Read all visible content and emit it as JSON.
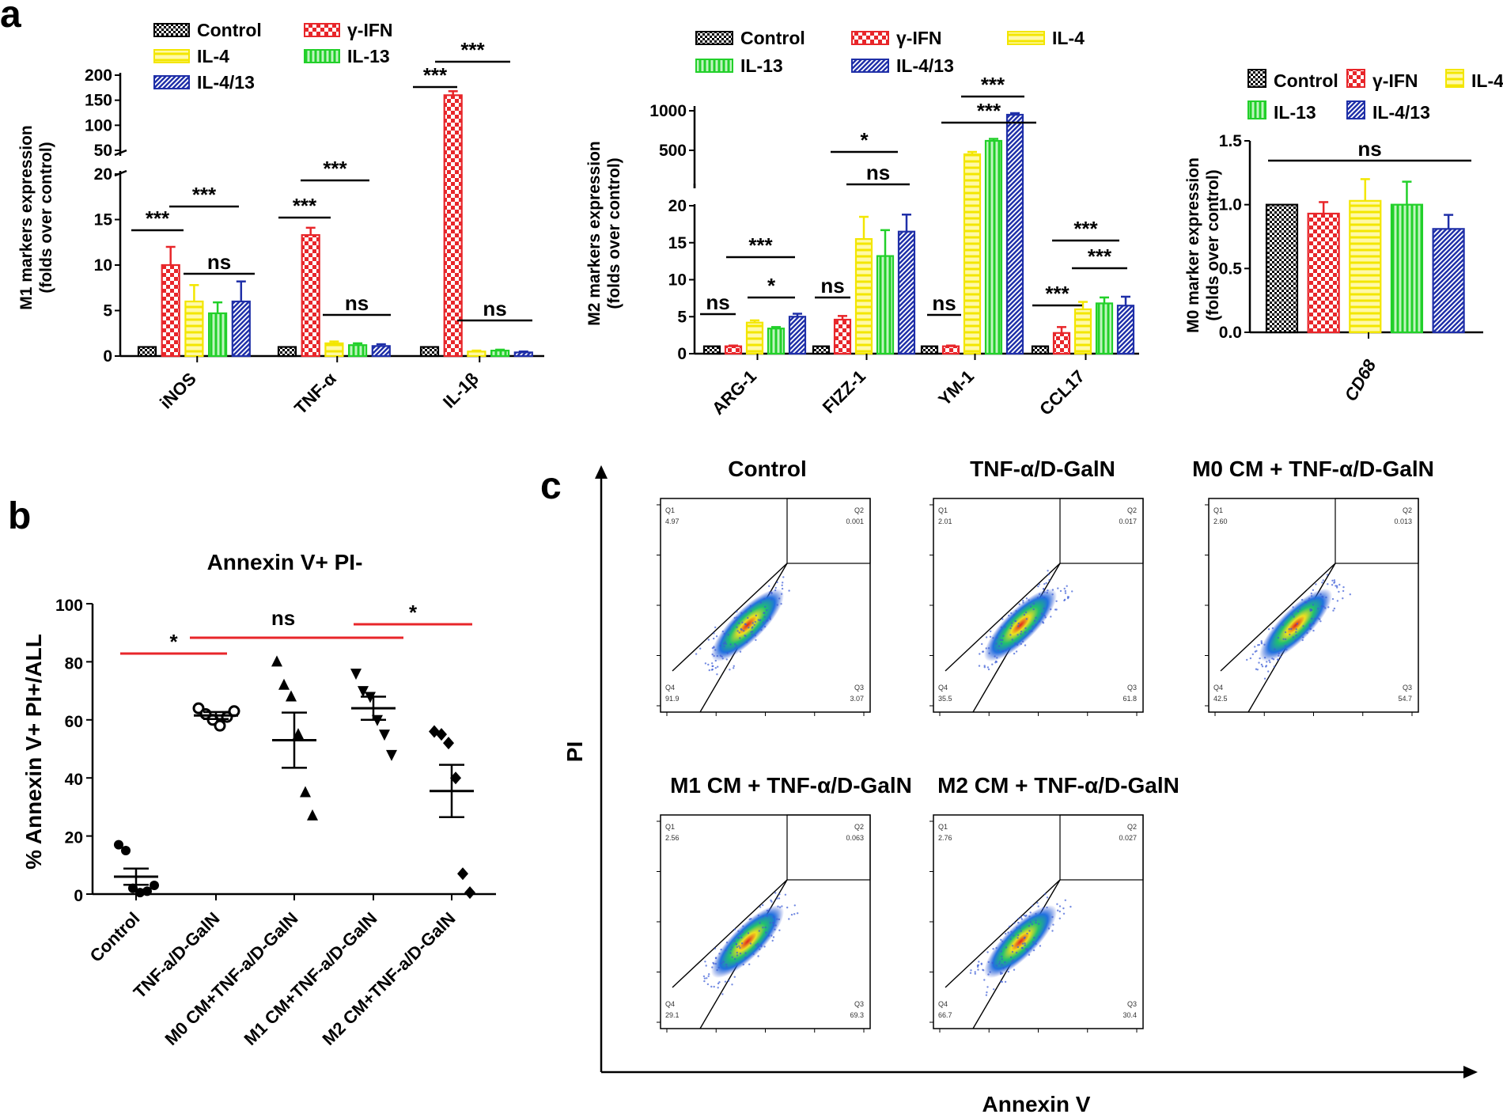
{
  "panel_labels": {
    "a": "a",
    "b": "b",
    "c": "c"
  },
  "colors": {
    "Control": "#000000",
    "γ-IFN": "#e8262a",
    "IL-4": "#f3e600",
    "IL-13": "#22d02a",
    "IL-4/13": "#1f2fa8",
    "sig_red": "#e8262a"
  },
  "chart_data": [
    {
      "id": "a1",
      "type": "bar",
      "ylabel": "M1 markers expression\n(folds over control)",
      "legend": [
        "Control",
        "γ-IFN",
        "IL-4",
        "IL-13",
        "IL-4/13"
      ],
      "categories": [
        "iNOS",
        "TNF-α",
        "IL-1β"
      ],
      "ytick_labels": [
        "0",
        "5",
        "10",
        "15",
        "20",
        "50",
        "100",
        "150",
        "200"
      ],
      "y_breaks": [
        [
          0,
          20
        ],
        [
          20,
          200
        ]
      ],
      "series": [
        {
          "name": "Control",
          "values": [
            1,
            1,
            1
          ],
          "err": [
            0,
            0,
            0
          ]
        },
        {
          "name": "γ-IFN",
          "values": [
            10,
            13.3,
            160
          ],
          "err": [
            2,
            0.8,
            8
          ]
        },
        {
          "name": "IL-4",
          "values": [
            6,
            1.4,
            0.5
          ],
          "err": [
            1.8,
            0.2,
            0.1
          ]
        },
        {
          "name": "IL-13",
          "values": [
            4.7,
            1.2,
            0.6
          ],
          "err": [
            1.2,
            0.2,
            0.1
          ]
        },
        {
          "name": "IL-4/13",
          "values": [
            6,
            1.1,
            0.4
          ],
          "err": [
            2.2,
            0.2,
            0.1
          ]
        }
      ],
      "annotations": [
        "***",
        "***",
        "ns",
        "***",
        "***",
        "ns",
        "***",
        "***",
        "ns"
      ]
    },
    {
      "id": "a2",
      "type": "bar",
      "ylabel": "M2 markers expression\n(folds over control)",
      "legend": [
        "Control",
        "γ-IFN",
        "IL-4",
        "IL-13",
        "IL-4/13"
      ],
      "categories": [
        "ARG-1",
        "FIZZ-1",
        "YM-1",
        "CCL17"
      ],
      "ytick_labels": [
        "0",
        "5",
        "10",
        "15",
        "20",
        "500",
        "1000"
      ],
      "y_breaks": [
        [
          0,
          20
        ],
        [
          20,
          1000
        ]
      ],
      "series": [
        {
          "name": "Control",
          "values": [
            1,
            1,
            1,
            1
          ],
          "err": [
            0,
            0,
            0,
            0
          ]
        },
        {
          "name": "γ-IFN",
          "values": [
            1,
            4.6,
            1,
            2.8
          ],
          "err": [
            0.1,
            0.5,
            0.1,
            0.8
          ]
        },
        {
          "name": "IL-4",
          "values": [
            4.2,
            15.5,
            450,
            6
          ],
          "err": [
            0.3,
            3,
            30,
            1
          ]
        },
        {
          "name": "IL-13",
          "values": [
            3.4,
            13.2,
            620,
            6.8
          ],
          "err": [
            0.2,
            3.5,
            25,
            0.8
          ]
        },
        {
          "name": "IL-4/13",
          "values": [
            5,
            16.5,
            950,
            6.5
          ],
          "err": [
            0.4,
            2.3,
            20,
            1.2
          ]
        }
      ],
      "annotations": [
        "ns",
        "***",
        "*",
        "ns",
        "*",
        "ns",
        "ns",
        "***",
        "***",
        "***",
        "***",
        "***"
      ]
    },
    {
      "id": "a3",
      "type": "bar",
      "ylabel": "M0 marker expression\n(folds over control)",
      "legend": [
        "Control",
        "γ-IFN",
        "IL-4",
        "IL-13",
        "IL-4/13"
      ],
      "categories": [
        "CD68"
      ],
      "ytick_labels": [
        "0.0",
        "0.5",
        "1.0",
        "1.5"
      ],
      "ylim": [
        0,
        1.5
      ],
      "series": [
        {
          "name": "Control",
          "values": [
            1.0
          ],
          "err": [
            0
          ]
        },
        {
          "name": "γ-IFN",
          "values": [
            0.93
          ],
          "err": [
            0.09
          ]
        },
        {
          "name": "IL-4",
          "values": [
            1.03
          ],
          "err": [
            0.17
          ]
        },
        {
          "name": "IL-13",
          "values": [
            1.0
          ],
          "err": [
            0.18
          ]
        },
        {
          "name": "IL-4/13",
          "values": [
            0.81
          ],
          "err": [
            0.11
          ]
        }
      ],
      "annotations": [
        "ns"
      ]
    },
    {
      "id": "b",
      "type": "scatter",
      "title": "Annexin V+ PI-",
      "ylabel": "% Annexin V+ PI+/ALL",
      "ylim": [
        0,
        100
      ],
      "ytick_labels": [
        "0",
        "20",
        "40",
        "60",
        "80",
        "100"
      ],
      "categories": [
        "Control",
        "TNF-a/D-GalN",
        "M0 CM+TNF-a/D-GalN",
        "M1 CM+TNF-a/D-GalN",
        "M2 CM+TNF-a/D-GalN"
      ],
      "markers": [
        "circle",
        "circle-open",
        "triangle",
        "triangle-down",
        "diamond"
      ],
      "groups": [
        {
          "name": "Control",
          "points": [
            17,
            15,
            2,
            0.5,
            1,
            3
          ],
          "mean": 6,
          "sem": 2.8
        },
        {
          "name": "TNF-a/D-GalN",
          "points": [
            64,
            62,
            60,
            58,
            61,
            63
          ],
          "mean": 61.5,
          "sem": 1.2
        },
        {
          "name": "M0 CM+TNF-a/D-GalN",
          "points": [
            80,
            72,
            68,
            55,
            35,
            27
          ],
          "mean": 53,
          "sem": 9.5
        },
        {
          "name": "M1 CM+TNF-a/D-GalN",
          "points": [
            76,
            70,
            68,
            60,
            55,
            48
          ],
          "mean": 64,
          "sem": 4
        },
        {
          "name": "M2 CM+TNF-a/D-GalN",
          "points": [
            56,
            55,
            52,
            40,
            7,
            0.5
          ],
          "mean": 35.5,
          "sem": 9
        }
      ],
      "annotations": [
        "*",
        "ns",
        "*"
      ]
    },
    {
      "id": "c",
      "type": "scatter",
      "xlabel": "Annexin V",
      "ylabel": "PI",
      "plots": [
        {
          "title": "Control",
          "q1": "4.97",
          "q2": "0.001",
          "q3": "3.07",
          "q4": "91.9"
        },
        {
          "title": "TNF-α/D-GalN",
          "q1": "2.01",
          "q2": "0.017",
          "q3": "61.8",
          "q4": "35.5"
        },
        {
          "title": "M0 CM + TNF-α/D-GalN",
          "q1": "2.60",
          "q2": "0.013",
          "q3": "54.7",
          "q4": "42.5"
        },
        {
          "title": "M1 CM + TNF-α/D-GalN",
          "q1": "2.56",
          "q2": "0.063",
          "q3": "69.3",
          "q4": "29.1"
        },
        {
          "title": "M2 CM + TNF-α/D-GalN",
          "q1": "2.76",
          "q2": "0.027",
          "q3": "30.4",
          "q4": "66.7"
        }
      ]
    }
  ]
}
